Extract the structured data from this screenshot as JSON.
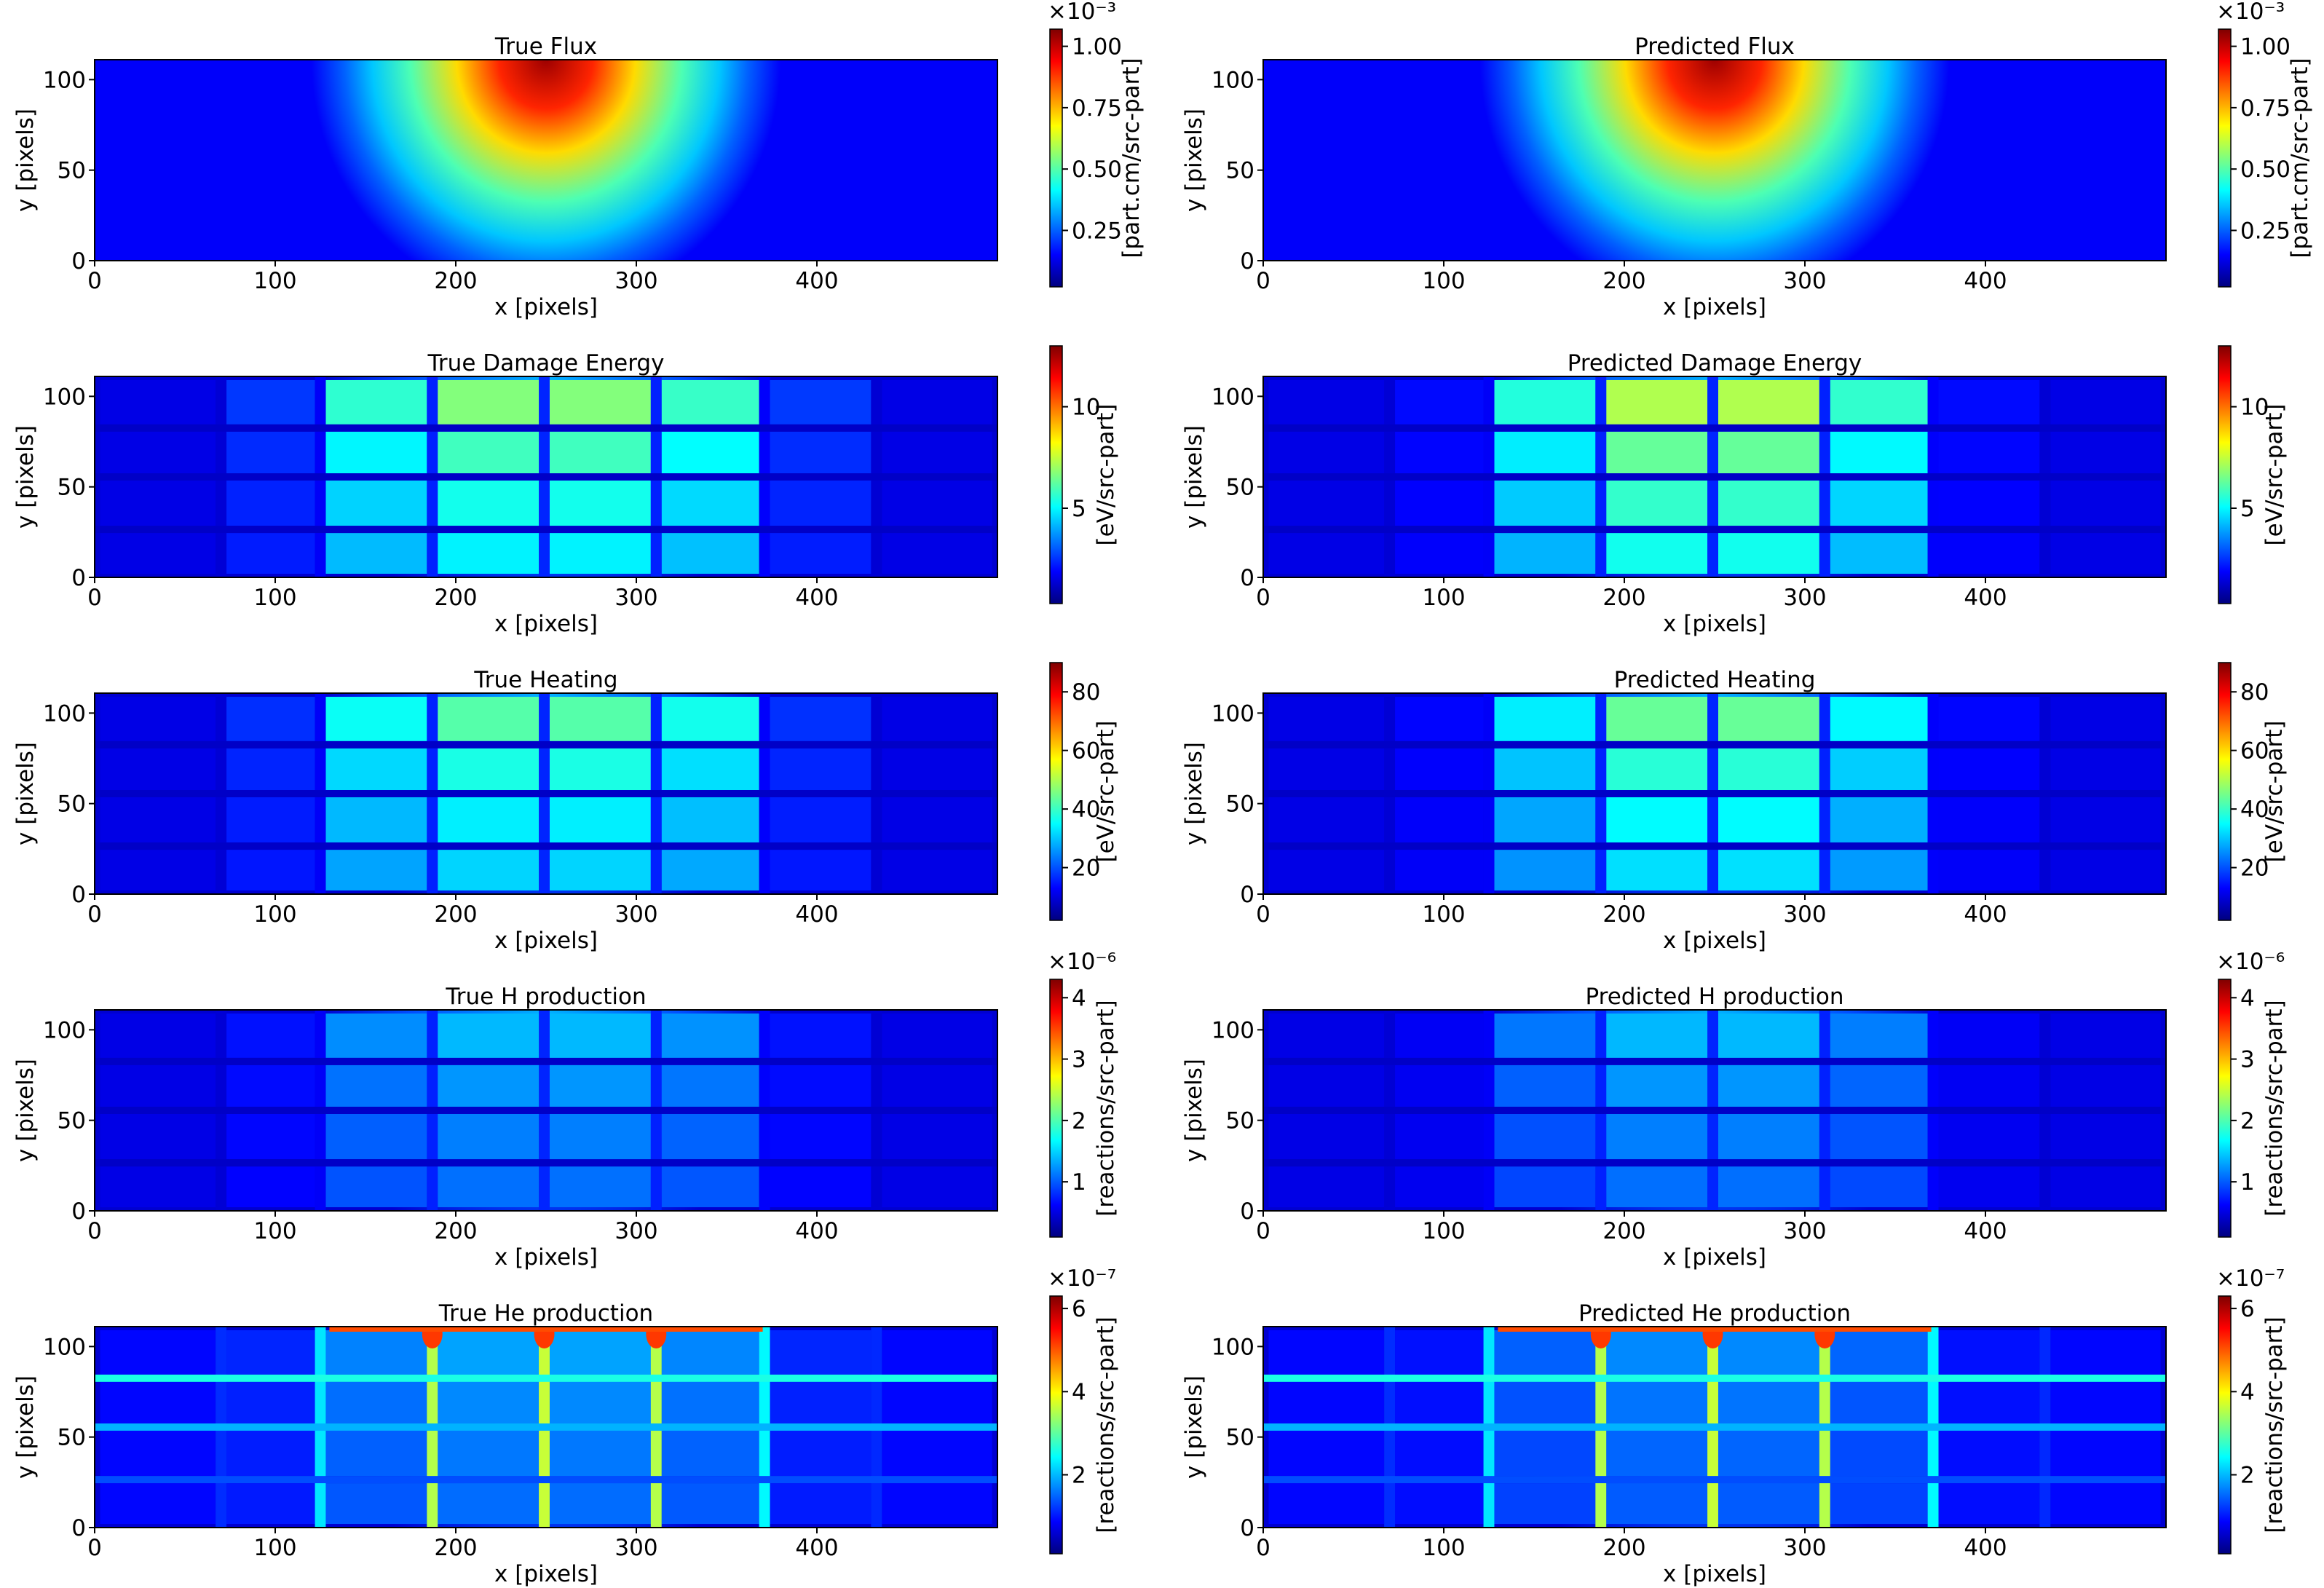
{
  "figure": {
    "layout": "5 rows x 2 columns of heatmaps, each with its own colorbar"
  },
  "colors": {
    "colormap": "jet",
    "stops": [
      "#00007f",
      "#0000ff",
      "#007fff",
      "#00ffff",
      "#7fff7f",
      "#ffff00",
      "#ff7f00",
      "#ff0000",
      "#7f0000"
    ]
  },
  "chart_data": [
    {
      "type": "heatmap",
      "title": "True Flux",
      "xlabel": "x [pixels]",
      "ylabel": "y [pixels]",
      "xlim": [
        0,
        500
      ],
      "ylim": [
        0,
        111
      ],
      "xticks": [
        0,
        100,
        200,
        300,
        400
      ],
      "yticks": [
        0,
        50,
        100
      ],
      "pattern": "flux",
      "truth": true,
      "max_norm": 1.0,
      "colorbar": {
        "label": "[part.cm/src-part]",
        "range": [
          0.02,
          1.07
        ],
        "ticks": [
          0.25,
          0.5,
          0.75,
          1.0
        ],
        "tick_labels": [
          "0.25",
          "0.50",
          "0.75",
          "1.00"
        ],
        "exponent": "×10⁻³"
      }
    },
    {
      "type": "heatmap",
      "title": "Predicted Flux",
      "xlabel": "x [pixels]",
      "ylabel": "y [pixels]",
      "xlim": [
        0,
        500
      ],
      "ylim": [
        0,
        111
      ],
      "xticks": [
        0,
        100,
        200,
        300,
        400
      ],
      "yticks": [
        0,
        50,
        100
      ],
      "pattern": "flux",
      "truth": false,
      "max_norm": 1.0,
      "colorbar": {
        "label": "[part.cm/src-part]",
        "range": [
          0.02,
          1.07
        ],
        "ticks": [
          0.25,
          0.5,
          0.75,
          1.0
        ],
        "tick_labels": [
          "0.25",
          "0.50",
          "0.75",
          "1.00"
        ],
        "exponent": "×10⁻³"
      }
    },
    {
      "type": "heatmap",
      "title": "True Damage Energy",
      "xlabel": "x [pixels]",
      "ylabel": "y [pixels]",
      "xlim": [
        0,
        500
      ],
      "ylim": [
        0,
        111
      ],
      "xticks": [
        0,
        100,
        200,
        300,
        400
      ],
      "yticks": [
        0,
        50,
        100
      ],
      "pattern": "grid",
      "truth": true,
      "max_norm": 0.55,
      "colorbar": {
        "label": "[eV/src-part]",
        "range": [
          0.3,
          13
        ],
        "ticks": [
          5,
          10
        ],
        "tick_labels": [
          "5",
          "10"
        ],
        "exponent": ""
      }
    },
    {
      "type": "heatmap",
      "title": "Predicted Damage Energy",
      "xlabel": "x [pixels]",
      "ylabel": "y [pixels]",
      "xlim": [
        0,
        500
      ],
      "ylim": [
        0,
        111
      ],
      "xticks": [
        0,
        100,
        200,
        300,
        400
      ],
      "yticks": [
        0,
        50,
        100
      ],
      "pattern": "grid",
      "truth": false,
      "max_norm": 0.6,
      "colorbar": {
        "label": "[eV/src-part]",
        "range": [
          0.3,
          13
        ],
        "ticks": [
          5,
          10
        ],
        "tick_labels": [
          "5",
          "10"
        ],
        "exponent": ""
      }
    },
    {
      "type": "heatmap",
      "title": "True Heating",
      "xlabel": "x [pixels]",
      "ylabel": "y [pixels]",
      "xlim": [
        0,
        500
      ],
      "ylim": [
        0,
        111
      ],
      "xticks": [
        0,
        100,
        200,
        300,
        400
      ],
      "yticks": [
        0,
        50,
        100
      ],
      "pattern": "grid",
      "truth": true,
      "max_norm": 0.5,
      "colorbar": {
        "label": "[eV/src-part]",
        "range": [
          2,
          90
        ],
        "ticks": [
          20,
          40,
          60,
          80
        ],
        "tick_labels": [
          "20",
          "40",
          "60",
          "80"
        ],
        "exponent": ""
      }
    },
    {
      "type": "heatmap",
      "title": "Predicted Heating",
      "xlabel": "x [pixels]",
      "ylabel": "y [pixels]",
      "xlim": [
        0,
        500
      ],
      "ylim": [
        0,
        111
      ],
      "xticks": [
        0,
        100,
        200,
        300,
        400
      ],
      "yticks": [
        0,
        50,
        100
      ],
      "pattern": "grid",
      "truth": false,
      "max_norm": 0.52,
      "colorbar": {
        "label": "[eV/src-part]",
        "range": [
          2,
          90
        ],
        "ticks": [
          20,
          40,
          60,
          80
        ],
        "tick_labels": [
          "20",
          "40",
          "60",
          "80"
        ],
        "exponent": ""
      }
    },
    {
      "type": "heatmap",
      "title": "True H production",
      "xlabel": "x [pixels]",
      "ylabel": "y [pixels]",
      "xlim": [
        0,
        500
      ],
      "ylim": [
        0,
        111
      ],
      "xticks": [
        0,
        100,
        200,
        300,
        400
      ],
      "yticks": [
        0,
        50,
        100
      ],
      "pattern": "grid",
      "truth": true,
      "max_norm": 0.33,
      "colorbar": {
        "label": "[reactions/src-part]",
        "range": [
          0.1,
          4.3
        ],
        "ticks": [
          1,
          2,
          3,
          4
        ],
        "tick_labels": [
          "1",
          "2",
          "3",
          "4"
        ],
        "exponent": "×10⁻⁶"
      }
    },
    {
      "type": "heatmap",
      "title": "Predicted H production",
      "xlabel": "x [pixels]",
      "ylabel": "y [pixels]",
      "xlim": [
        0,
        500
      ],
      "ylim": [
        0,
        111
      ],
      "xticks": [
        0,
        100,
        200,
        300,
        400
      ],
      "yticks": [
        0,
        50,
        100
      ],
      "pattern": "grid",
      "truth": false,
      "max_norm": 0.33,
      "colorbar": {
        "label": "[reactions/src-part]",
        "range": [
          0.1,
          4.3
        ],
        "ticks": [
          1,
          2,
          3,
          4
        ],
        "tick_labels": [
          "1",
          "2",
          "3",
          "4"
        ],
        "exponent": "×10⁻⁶"
      }
    },
    {
      "type": "heatmap",
      "title": "True He production",
      "xlabel": "x [pixels]",
      "ylabel": "y [pixels]",
      "xlim": [
        0,
        500
      ],
      "ylim": [
        0,
        111
      ],
      "xticks": [
        0,
        100,
        200,
        300,
        400
      ],
      "yticks": [
        0,
        50,
        100
      ],
      "pattern": "he",
      "truth": true,
      "max_norm": 0.55,
      "colorbar": {
        "label": "[reactions/src-part]",
        "range": [
          0.1,
          6.3
        ],
        "ticks": [
          2,
          4,
          6
        ],
        "tick_labels": [
          "2",
          "4",
          "6"
        ],
        "exponent": "×10⁻⁷"
      }
    },
    {
      "type": "heatmap",
      "title": "Predicted He production",
      "xlabel": "x [pixels]",
      "ylabel": "y [pixels]",
      "xlim": [
        0,
        500
      ],
      "ylim": [
        0,
        111
      ],
      "xticks": [
        0,
        100,
        200,
        300,
        400
      ],
      "yticks": [
        0,
        50,
        100
      ],
      "pattern": "he",
      "truth": false,
      "max_norm": 0.5,
      "colorbar": {
        "label": "[reactions/src-part]",
        "range": [
          0.1,
          6.3
        ],
        "ticks": [
          2,
          4,
          6
        ],
        "tick_labels": [
          "2",
          "4",
          "6"
        ],
        "exponent": "×10⁻⁷"
      }
    }
  ]
}
